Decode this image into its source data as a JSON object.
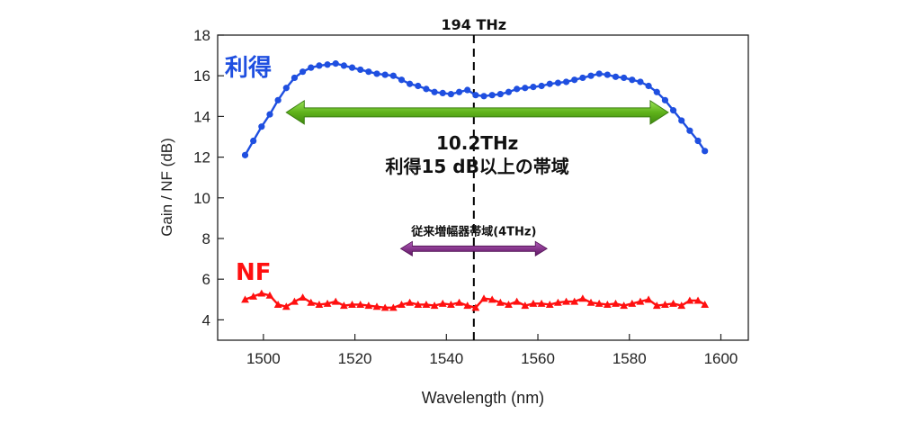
{
  "chart_data": {
    "type": "line",
    "xlabel": "Wavelength (nm)",
    "ylabel": "Gain / NF (dB)",
    "xlim": [
      1490,
      1606
    ],
    "ylim": [
      3,
      18
    ],
    "xticks": [
      1500,
      1520,
      1540,
      1560,
      1580,
      1600
    ],
    "yticks": [
      4,
      6,
      8,
      10,
      12,
      14,
      16,
      18
    ],
    "grid": false,
    "series": [
      {
        "name": "利得",
        "color": "#1f4fe0",
        "marker": "circle",
        "x": [
          1496,
          1497.8,
          1499.6,
          1501.4,
          1503.2,
          1505,
          1506.8,
          1508.6,
          1510.4,
          1512.2,
          1514,
          1515.8,
          1517.6,
          1519.4,
          1521.2,
          1523,
          1524.8,
          1526.6,
          1528.4,
          1530.2,
          1532,
          1533.8,
          1535.6,
          1537.4,
          1539.2,
          1541,
          1542.8,
          1544.6,
          1546.4,
          1548.2,
          1550,
          1551.8,
          1553.6,
          1555.4,
          1557.2,
          1559,
          1560.8,
          1562.6,
          1564.4,
          1566.2,
          1568,
          1569.8,
          1571.6,
          1573.4,
          1575.2,
          1577,
          1578.8,
          1580.6,
          1582.4,
          1584.2,
          1586,
          1587.8,
          1589.6,
          1591.4,
          1593.2,
          1595,
          1596.5
        ],
        "y": [
          12.1,
          12.8,
          13.5,
          14.1,
          14.8,
          15.4,
          15.9,
          16.2,
          16.4,
          16.5,
          16.55,
          16.6,
          16.5,
          16.4,
          16.3,
          16.2,
          16.1,
          16.05,
          16.0,
          15.8,
          15.6,
          15.5,
          15.35,
          15.2,
          15.15,
          15.1,
          15.2,
          15.3,
          15.05,
          15.0,
          15.05,
          15.1,
          15.2,
          15.35,
          15.4,
          15.45,
          15.5,
          15.6,
          15.65,
          15.7,
          15.8,
          15.9,
          16.0,
          16.1,
          16.05,
          15.95,
          15.9,
          15.8,
          15.7,
          15.5,
          15.2,
          14.8,
          14.3,
          13.8,
          13.3,
          12.8,
          12.3
        ]
      },
      {
        "name": "NF",
        "color": "#ff1010",
        "marker": "triangle",
        "x": [
          1496,
          1497.8,
          1499.6,
          1501.4,
          1503.2,
          1505,
          1506.8,
          1508.6,
          1510.4,
          1512.2,
          1514,
          1515.8,
          1517.6,
          1519.4,
          1521.2,
          1523,
          1524.8,
          1526.6,
          1528.4,
          1530.2,
          1532,
          1533.8,
          1535.6,
          1537.4,
          1539.2,
          1541,
          1542.8,
          1544.6,
          1546.4,
          1548.2,
          1550,
          1551.8,
          1553.6,
          1555.4,
          1557.2,
          1559,
          1560.8,
          1562.6,
          1564.4,
          1566.2,
          1568,
          1569.8,
          1571.6,
          1573.4,
          1575.2,
          1577,
          1578.8,
          1580.6,
          1582.4,
          1584.2,
          1586,
          1587.8,
          1589.6,
          1591.4,
          1593.2,
          1595,
          1596.5
        ],
        "y": [
          5.0,
          5.15,
          5.3,
          5.2,
          4.75,
          4.65,
          4.9,
          5.1,
          4.85,
          4.75,
          4.8,
          4.9,
          4.7,
          4.75,
          4.75,
          4.7,
          4.65,
          4.6,
          4.6,
          4.75,
          4.85,
          4.75,
          4.75,
          4.7,
          4.8,
          4.75,
          4.85,
          4.7,
          4.6,
          5.05,
          5.0,
          4.85,
          4.75,
          4.9,
          4.7,
          4.8,
          4.8,
          4.75,
          4.85,
          4.9,
          4.9,
          5.05,
          4.85,
          4.8,
          4.75,
          4.8,
          4.7,
          4.8,
          4.9,
          5.0,
          4.7,
          4.75,
          4.8,
          4.7,
          4.95,
          4.95,
          4.75
        ]
      }
    ],
    "annotations": {
      "series_labels": [
        "利得",
        "NF"
      ],
      "frequency_line": {
        "x": 1546,
        "label": "194 THz"
      },
      "wide_band": {
        "x_start": 1505,
        "x_end": 1588.5,
        "y": 14.2,
        "color": "#5fb21a",
        "label_line1": "10.2THz",
        "label_line2": "利得15 dB以上の帯域"
      },
      "narrow_band": {
        "x_start": 1530,
        "x_end": 1562,
        "y": 7.5,
        "color": "#7a1f7e",
        "label": "従来増幅器帯域(4THz)"
      }
    }
  }
}
